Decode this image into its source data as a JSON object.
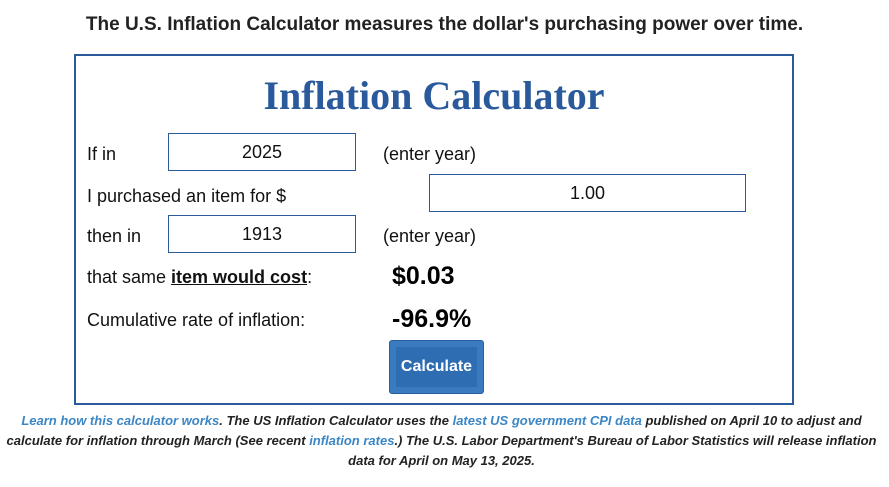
{
  "headline": "The U.S. Inflation Calculator measures the dollar's purchasing power over time.",
  "calculator": {
    "title": "Inflation Calculator",
    "row1": {
      "label": "If in",
      "year_value": "2025",
      "hint": "(enter year)"
    },
    "row2": {
      "label": "I purchased an item for $",
      "amount_value": "1.00"
    },
    "row3": {
      "label": "then in",
      "year_value": "1913",
      "hint": "(enter year)"
    },
    "row4": {
      "label_prefix": "that same ",
      "label_link": "item would cost",
      "label_suffix": ":",
      "result": "$0.03"
    },
    "row5": {
      "label": "Cumulative rate of inflation:",
      "result": "-96.9%"
    },
    "button_label": "Calculate"
  },
  "footnote": {
    "link1": "Learn how this calculator works",
    "text1": ". The US Inflation Calculator uses the ",
    "link2": "latest US government CPI data",
    "text2": " published on April 10 to adjust and calculate for inflation through March (See recent ",
    "link3": "inflation rates",
    "text3": ".) The U.S. Labor Department's Bureau of Labor Statistics will release inflation data for April on May 13, 2025."
  },
  "colors": {
    "brand_blue": "#2a5a9b",
    "button": "#2f6db3",
    "link": "#3b86c5"
  }
}
